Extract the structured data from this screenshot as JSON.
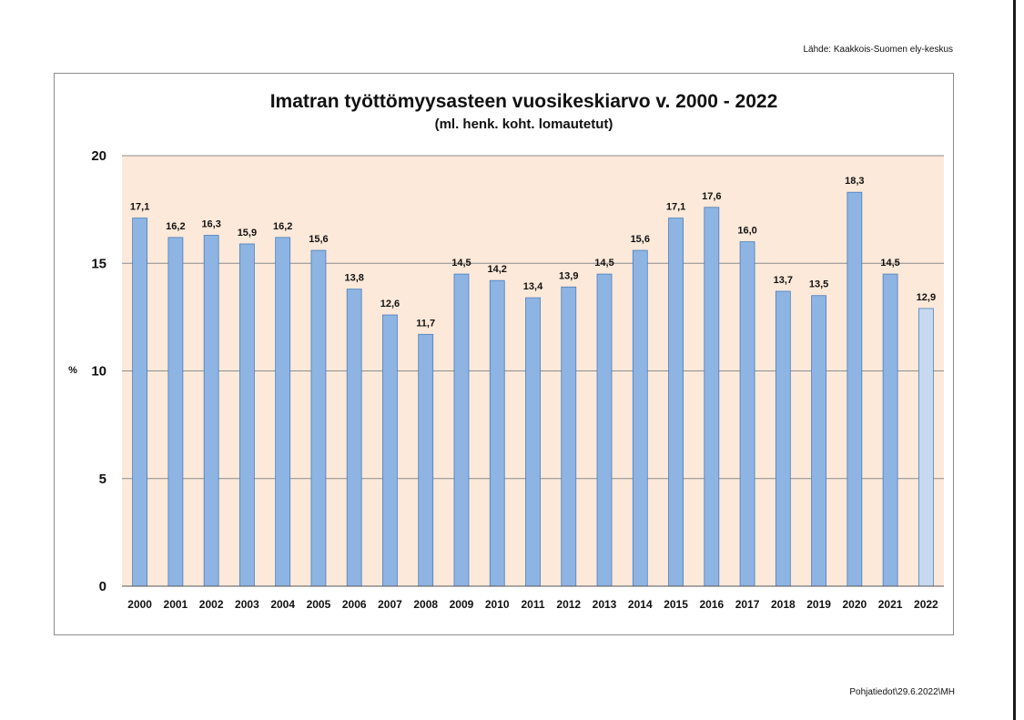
{
  "source_note": "Lähde: Kaakkois-Suomen ely-keskus",
  "footer_note": "Pohjatiedot\\29.6.2022\\MH",
  "chart_data": {
    "type": "bar",
    "title": "Imatran työttömyysasteen vuosikeskiarvo v. 2000 - 2022",
    "subtitle": "(ml. henk. koht. lomautetut)",
    "ylabel": "%",
    "xlabel": "",
    "ylim": [
      0,
      20
    ],
    "yticks": [
      "0",
      "5",
      "10",
      "15",
      "20"
    ],
    "grid": true,
    "legend": "none",
    "categories": [
      "2000",
      "2001",
      "2002",
      "2003",
      "2004",
      "2005",
      "2006",
      "2007",
      "2008",
      "2009",
      "2010",
      "2011",
      "2012",
      "2013",
      "2014",
      "2015",
      "2016",
      "2017",
      "2018",
      "2019",
      "2020",
      "2021",
      "2022"
    ],
    "values": [
      17.1,
      16.2,
      16.3,
      15.9,
      16.2,
      15.6,
      13.8,
      12.6,
      11.7,
      14.5,
      14.2,
      13.4,
      13.9,
      14.5,
      15.6,
      17.1,
      17.6,
      16.0,
      13.7,
      13.5,
      18.3,
      14.5,
      12.9
    ],
    "value_labels": [
      "17,1",
      "16,2",
      "16,3",
      "15,9",
      "16,2",
      "15,6",
      "13,8",
      "12,6",
      "11,7",
      "14,5",
      "14,2",
      "13,4",
      "13,9",
      "14,5",
      "15,6",
      "17,1",
      "17,6",
      "16,0",
      "13,7",
      "13,5",
      "18,3",
      "14,5",
      "12,9"
    ],
    "colors": {
      "bar": "#8eb4e3",
      "bar_highlight": "#c6d9f1",
      "bar_stroke": "#4a7ebb",
      "plot_bg": "#fde9d9",
      "grid": "#8c8c8c"
    },
    "highlight_category": "2022"
  }
}
